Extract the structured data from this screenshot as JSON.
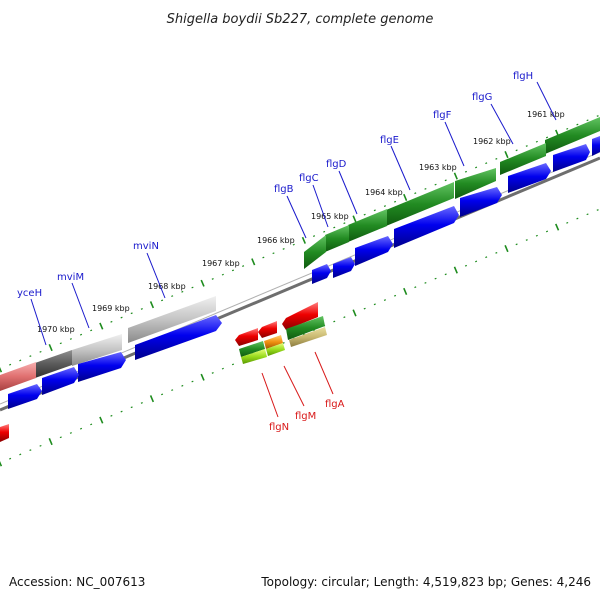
{
  "title": "Shigella boydii Sb227, complete genome",
  "footer": {
    "accession": "Accession: NC_007613",
    "summary": "Topology: circular; Length: 4,519,823 bp; Genes: 4,246"
  },
  "position_labels": [
    "1961 kbp",
    "1962 kbp",
    "1963 kbp",
    "1964 kbp",
    "1965 kbp",
    "1966 kbp",
    "1967 kbp",
    "1968 kbp",
    "1969 kbp",
    "1970 kbp"
  ],
  "forward_genes": [
    "flgH",
    "flgG",
    "flgF",
    "flgE",
    "flgD",
    "flgC",
    "flgB",
    "mviN",
    "mviM",
    "yceH"
  ],
  "reverse_genes": [
    "flgA",
    "flgM",
    "flgN"
  ],
  "colors": {
    "forward_label": "#1a1acc",
    "reverse_label": "#d81818",
    "cds_forward": "#0000ee",
    "cds_reverse": "#ee0000",
    "feature_green": "#228b22",
    "feature_grey": "#b8b8b8",
    "backbone": "#777777",
    "tick": "#1e8c1e"
  }
}
